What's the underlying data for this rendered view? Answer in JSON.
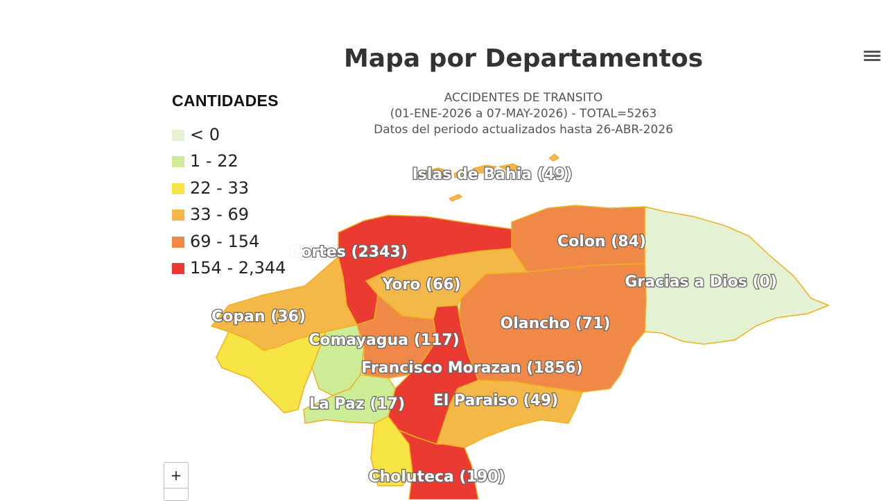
{
  "title": "Mapa por Departamentos",
  "subtitle": {
    "line1": "ACCIDENTES DE TRANSITO",
    "line2": "(01-ENE-2026 a 07-MAY-2026) - TOTAL=5263",
    "line3": "Datos del periodo actualizados hasta 26-ABR-2026"
  },
  "menu_icon": "hamburger-menu-icon",
  "legend": {
    "title": "CANTIDADES",
    "items": [
      {
        "label": "< 0",
        "color": "#e4f1d3"
      },
      {
        "label": "1 - 22",
        "color": "#ccec96"
      },
      {
        "label": "22 - 33",
        "color": "#f7e445"
      },
      {
        "label": "33 - 69",
        "color": "#f4b848"
      },
      {
        "label": "69 - 154",
        "color": "#f08847"
      },
      {
        "label": "154 - 2,344",
        "color": "#ea3a32"
      }
    ]
  },
  "departments": [
    {
      "name": "Islas de Bahia (49)",
      "value": 49
    },
    {
      "name": "Cortes (2343)",
      "value": 2343
    },
    {
      "name": "Colon (84)",
      "value": 84
    },
    {
      "name": "Yoro (66)",
      "value": 66
    },
    {
      "name": "Gracias a Dios (0)",
      "value": 0
    },
    {
      "name": "Copan (36)",
      "value": 36
    },
    {
      "name": "Olancho (71)",
      "value": 71
    },
    {
      "name": "Comayagua (117)",
      "value": 117
    },
    {
      "name": "Francisco Morazan (1856)",
      "value": 1856
    },
    {
      "name": "El Paraiso (49)",
      "value": 49
    },
    {
      "name": "La Paz (17)",
      "value": 17
    },
    {
      "name": "Choluteca (190)",
      "value": 190
    }
  ],
  "zoom": {
    "in_label": "+"
  }
}
